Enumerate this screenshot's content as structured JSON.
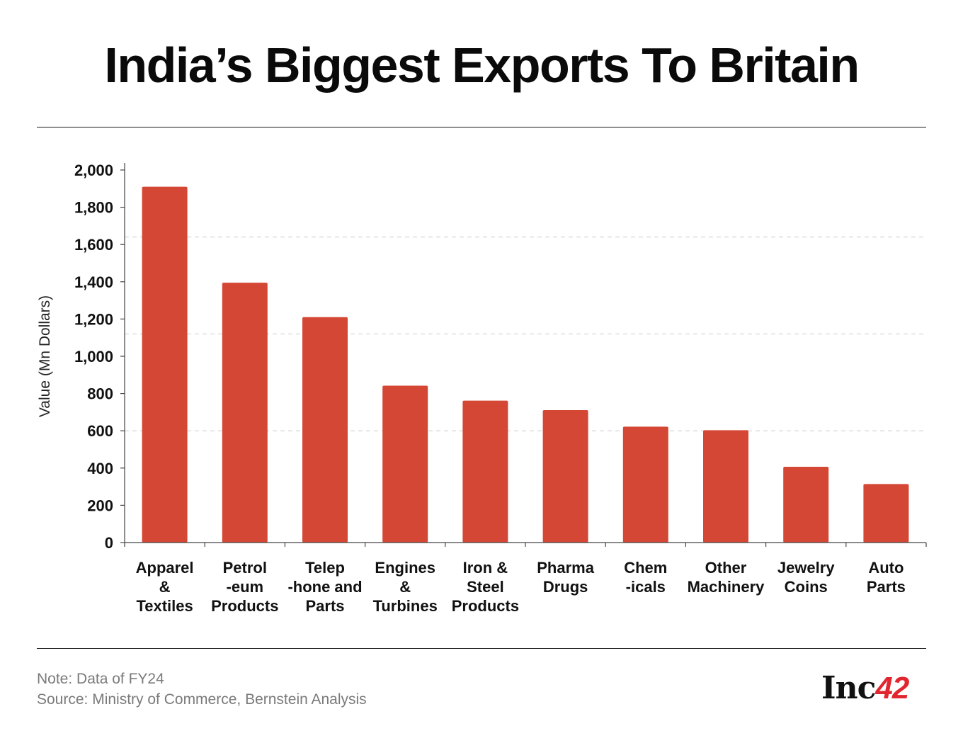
{
  "title": "India’s Biggest Exports To Britain",
  "footer": {
    "note": "Note: Data of FY24",
    "source": "Source: Ministry of Commerce, Bernstein Analysis"
  },
  "logo": {
    "text_main": "Inc",
    "text_accent": "42",
    "accent_color": "#e2262f"
  },
  "colors": {
    "bar": "#d44735",
    "axis": "#444444",
    "grid": "#cccccc"
  },
  "chart_data": {
    "type": "bar",
    "title": "India’s Biggest Exports To Britain",
    "xlabel": "",
    "ylabel": "Value (Mn Dollars)",
    "ylim": [
      0,
      2000
    ],
    "yticks": [
      0,
      200,
      400,
      600,
      800,
      1000,
      1200,
      1400,
      1600,
      1800,
      2000
    ],
    "ytick_labels": [
      "0",
      "200",
      "400",
      "600",
      "800",
      "1,000",
      "1,200",
      "1,400",
      "1,600",
      "1,800",
      "2,000"
    ],
    "gridlines": [
      600,
      1120,
      1640
    ],
    "grid": true,
    "legend": "none",
    "categories": [
      [
        "Apparel",
        "&",
        "Textiles"
      ],
      [
        "Petrol",
        "-eum",
        "Products"
      ],
      [
        "Telep",
        "-hone and",
        "Parts"
      ],
      [
        "Engines",
        "&",
        "Turbines"
      ],
      [
        "Iron &",
        "Steel",
        "Products"
      ],
      [
        "Pharma",
        "Drugs"
      ],
      [
        "Chem",
        "-icals"
      ],
      [
        "Other",
        "Machinery"
      ],
      [
        "Jewelry",
        "Coins"
      ],
      [
        "Auto",
        "Parts"
      ]
    ],
    "values": [
      1910,
      1395,
      1210,
      842,
      762,
      711,
      622,
      603,
      407,
      314
    ]
  }
}
